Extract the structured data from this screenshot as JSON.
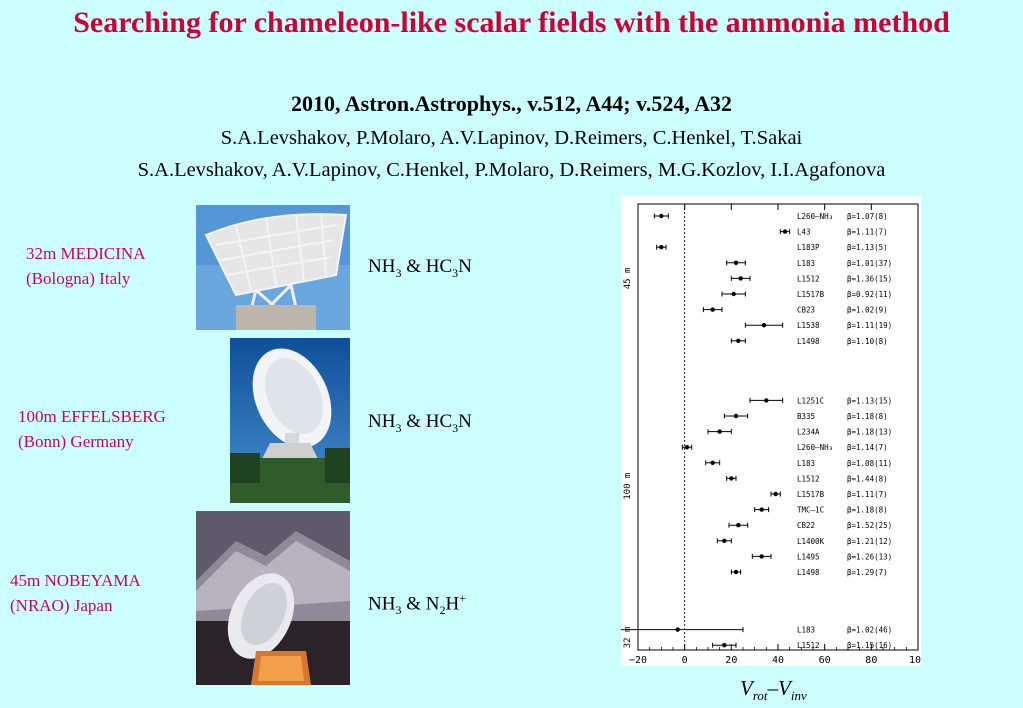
{
  "header": {
    "title": "Searching for chameleon-like scalar fields with the ammonia method",
    "reference": "2010, Astron.Astrophys., v.512, A44; v.524, A32",
    "authors_1": "S.A.Levshakov, P.Molaro, A.V.Lapinov, D.Reimers, C.Henkel, T.Sakai",
    "authors_2": "S.A.Levshakov, A.V.Lapinov, C.Henkel, P.Molaro, D.Reimers, M.G.Kozlov, I.I.Agafonova"
  },
  "telescopes": [
    {
      "line1": "32m MEDICINA",
      "line2": "(Bologna) Italy",
      "molecules": {
        "a": "NH",
        "a_sub": "3",
        "amp": " & ",
        "b": "HC",
        "b_sub": "3",
        "b_end": "N"
      }
    },
    {
      "line1": "100m EFFELSBERG",
      "line2": "(Bonn) Germany",
      "molecules": {
        "a": "NH",
        "a_sub": "3",
        "amp": " & ",
        "b": "HC",
        "b_sub": "3",
        "b_end": "N"
      }
    },
    {
      "line1": "45m NOBEYAMA",
      "line2": "(NRAO) Japan",
      "molecules": {
        "a": "NH",
        "a_sub": "3",
        "amp": " & ",
        "b": "N",
        "b_sub": "2",
        "b_end": "H",
        "b_sup": "+"
      }
    }
  ],
  "x_caption": {
    "v1": "V",
    "s1": "rot",
    "dash": "–",
    "v2": "V",
    "s2": "inv"
  },
  "colors": {
    "title": "#cc0033",
    "site_label": "#cc0066",
    "background": "#ccffff"
  },
  "chart_data": {
    "type": "scatter",
    "xlim": [
      -20,
      100
    ],
    "xticks": [
      "−20",
      "0",
      "20",
      "40",
      "60",
      "80",
      "100"
    ],
    "zero_line": "dotted at x=0",
    "groups": [
      {
        "label": "45 m",
        "points": [
          {
            "source": "L260–NH₃",
            "x": -10,
            "err": 3,
            "beta": "β=1.07(8)"
          },
          {
            "source": "L43",
            "x": 43,
            "err": 2,
            "beta": "β=1.11(7)"
          },
          {
            "source": "L183P",
            "x": -10,
            "err": 2,
            "beta": "β=1.13(5)"
          },
          {
            "source": "L183",
            "x": 22,
            "err": 4,
            "beta": "β=1.01(37)"
          },
          {
            "source": "L1512",
            "x": 24,
            "err": 4,
            "beta": "β=1.36(15)"
          },
          {
            "source": "L1517B",
            "x": 21,
            "err": 5,
            "beta": "β=0.92(11)"
          },
          {
            "source": "CB23",
            "x": 12,
            "err": 4,
            "beta": "β=1.02(9)"
          },
          {
            "source": "L1538",
            "x": 34,
            "err": 8,
            "beta": "β=1.11(19)"
          },
          {
            "source": "L1498",
            "x": 23,
            "err": 3,
            "beta": "β=1.10(8)"
          }
        ]
      },
      {
        "label": "100 m",
        "points": [
          {
            "source": "L1251C",
            "x": 35,
            "err": 7,
            "beta": "β=1.13(15)"
          },
          {
            "source": "B335",
            "x": 22,
            "err": 5,
            "beta": "β=1.18(8)"
          },
          {
            "source": "L234A",
            "x": 15,
            "err": 5,
            "beta": "β=1.18(13)"
          },
          {
            "source": "L260–NH₃",
            "x": 1,
            "err": 2,
            "beta": "β=1.14(7)"
          },
          {
            "source": "L183",
            "x": 12,
            "err": 3,
            "beta": "β=1.08(11)"
          },
          {
            "source": "L1512",
            "x": 20,
            "err": 2,
            "beta": "β=1.44(8)"
          },
          {
            "source": "L1517B",
            "x": 39,
            "err": 2,
            "beta": "β=1.11(7)"
          },
          {
            "source": "TMC–1C",
            "x": 33,
            "err": 3,
            "beta": "β=1.18(8)"
          },
          {
            "source": "CB22",
            "x": 23,
            "err": 4,
            "beta": "β=1.52(25)"
          },
          {
            "source": "L1400K",
            "x": 17,
            "err": 3,
            "beta": "β=1.21(12)"
          },
          {
            "source": "L1495",
            "x": 33,
            "err": 4,
            "beta": "β=1.26(13)"
          },
          {
            "source": "L1498",
            "x": 22,
            "err": 2,
            "beta": "β=1.29(7)"
          }
        ]
      },
      {
        "label": "32 m",
        "points": [
          {
            "source": "L183",
            "x": -3,
            "err": 28,
            "beta": "β=1.02(46)"
          },
          {
            "source": "L1512",
            "x": 17,
            "err": 5,
            "beta": "β=1.15(16)"
          }
        ]
      }
    ]
  }
}
